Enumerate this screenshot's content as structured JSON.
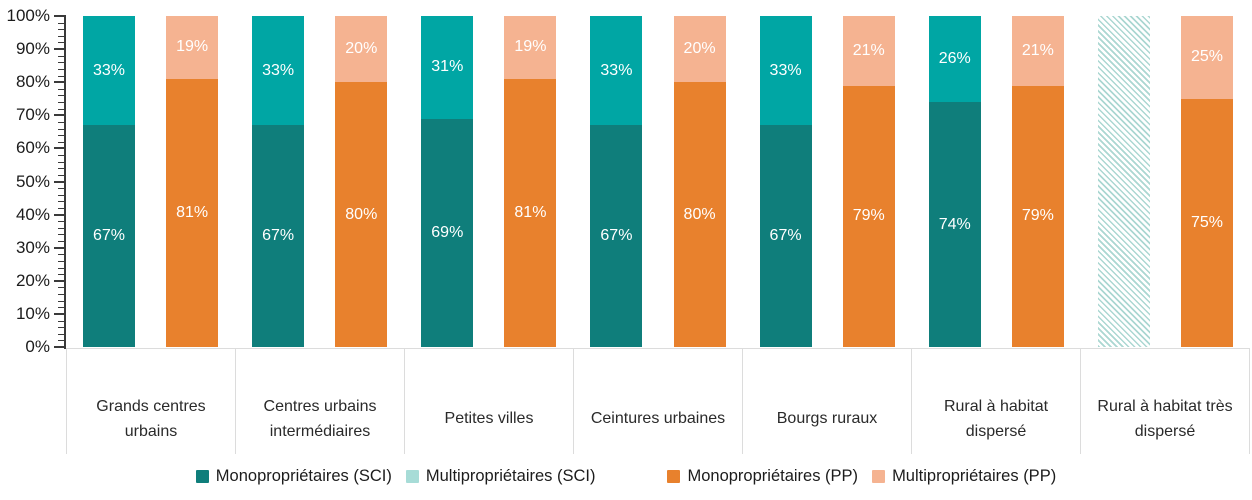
{
  "chart_data": {
    "type": "bar",
    "stacked": true,
    "grid": false,
    "legend_position": "bottom",
    "value_suffix": "%",
    "y_axis": {
      "min": 0,
      "max": 100,
      "major_step": 10,
      "minor_step": 2,
      "tick_label_suffix": "%"
    },
    "categories": [
      "Grands centres urbains",
      "Centres urbains intermédiaires",
      "Petites villes",
      "Ceintures urbaines",
      "Bourgs ruraux",
      "Rural à habitat dispersé",
      "Rural à habitat très dispersé"
    ],
    "series": [
      {
        "name": "Monopropriétaires (SCI)",
        "bar": "SCI",
        "color": "#0F7E7B",
        "legend_swatch": "#0F7E7B",
        "values": [
          67,
          67,
          69,
          67,
          67,
          74,
          null
        ]
      },
      {
        "name": "Multipropriétaires (SCI)",
        "bar": "SCI",
        "color": "#00A6A4",
        "legend_swatch": "#A7DCD7",
        "values": [
          33,
          33,
          31,
          33,
          33,
          26,
          null
        ]
      },
      {
        "name": "Monopropriétaires (PP)",
        "bar": "PP",
        "color": "#E8812D",
        "legend_swatch": "#E8812D",
        "values": [
          81,
          80,
          81,
          80,
          79,
          79,
          75
        ]
      },
      {
        "name": "Multipropriétaires (PP)",
        "bar": "PP",
        "color": "#F5B391",
        "legend_swatch": "#F5B391",
        "values": [
          19,
          20,
          19,
          20,
          21,
          21,
          25
        ]
      }
    ],
    "no_data": {
      "category": "Rural à habitat très dispersé",
      "bar": "SCI",
      "style": "hatched",
      "hatch_color": "#ABD7D2"
    },
    "colors": {
      "axis": "#3A3A3A",
      "separator": "#DCDCDC",
      "bar_label_text": "#FFFFFF"
    },
    "legend_groups": [
      [
        "Monopropriétaires (SCI)",
        "Multipropriétaires (SCI)"
      ],
      [
        "Monopropriétaires (PP)",
        "Multipropriétaires (PP)"
      ]
    ]
  }
}
